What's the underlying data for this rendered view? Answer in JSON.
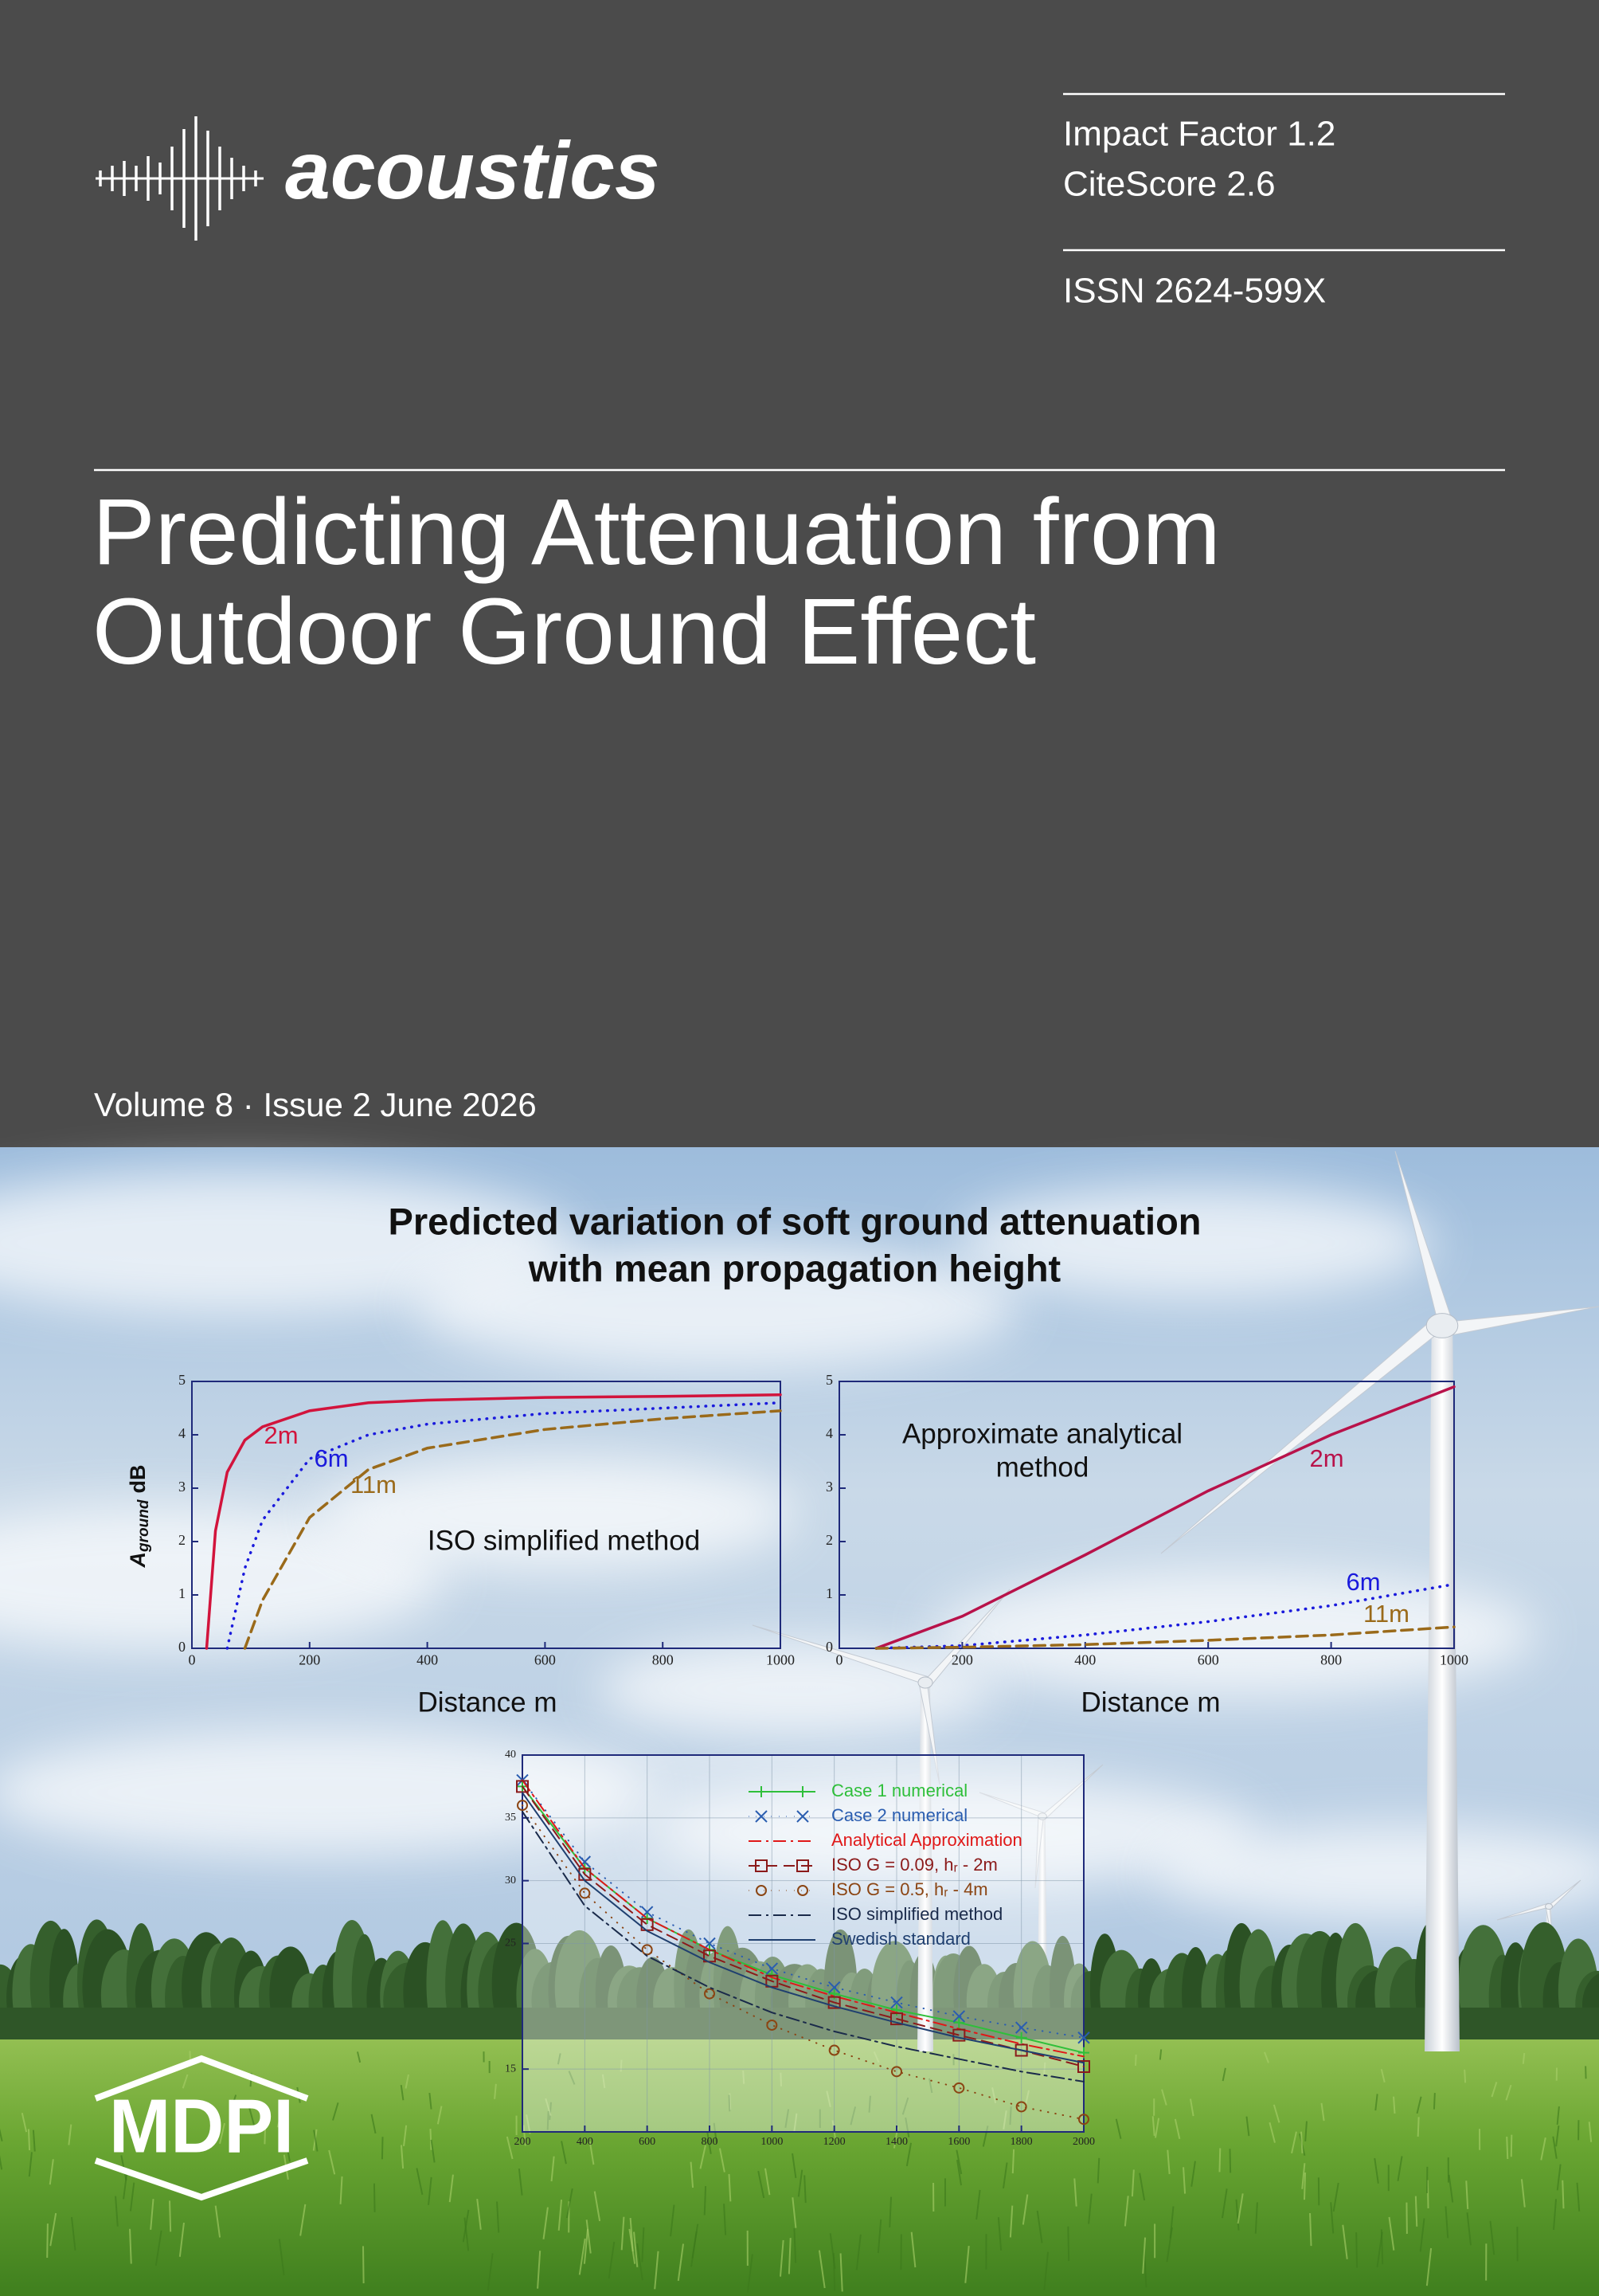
{
  "header": {
    "journal": "acoustics",
    "impact_factor": "Impact Factor 1.2",
    "citescore": "CiteScore 2.6",
    "issn": "ISSN 2624-599X"
  },
  "title": [
    "Predicting Attenuation from",
    "Outdoor Ground Effect"
  ],
  "issue": "Volume 8 · Issue 2 June 2026",
  "figure": {
    "title": [
      "Predicted variation of soft ground attenuation",
      "with mean propagation height"
    ],
    "charts": [
      {
        "type": "line",
        "y_label": [
          "A",
          "ground",
          "dB"
        ],
        "x_label": "Distance m",
        "annotation": [
          "ISO simplified method"
        ],
        "x": [
          25,
          40,
          60,
          90,
          120,
          200,
          300,
          400,
          600,
          800,
          1000
        ],
        "xlim": [
          0,
          1000
        ],
        "xticks": [
          0,
          200,
          400,
          600,
          800,
          1000
        ],
        "ylim": [
          0,
          5
        ],
        "yticks": [
          0,
          1,
          2,
          3,
          4,
          5
        ],
        "series": [
          {
            "name": "2m",
            "color": "#d2143c",
            "style": "solid",
            "values": [
              0,
              2.2,
              3.3,
              3.9,
              4.15,
              4.45,
              4.6,
              4.65,
              4.7,
              4.72,
              4.75
            ]
          },
          {
            "name": "6m",
            "color": "#1a1adc",
            "style": "dotted",
            "values": [
              null,
              null,
              0,
              1.5,
              2.4,
              3.55,
              4.0,
              4.2,
              4.4,
              4.5,
              4.6
            ]
          },
          {
            "name": "11m",
            "color": "#9a6a1a",
            "style": "dashed",
            "values": [
              null,
              null,
              null,
              0,
              0.9,
              2.45,
              3.35,
              3.75,
              4.1,
              4.3,
              4.45
            ]
          }
        ]
      },
      {
        "type": "line",
        "x_label": "Distance m",
        "annotation": [
          "Approximate analytical",
          "method"
        ],
        "x": [
          60,
          200,
          400,
          600,
          800,
          1000
        ],
        "xlim": [
          0,
          1000
        ],
        "xticks": [
          0,
          200,
          400,
          600,
          800,
          1000
        ],
        "ylim": [
          0,
          5
        ],
        "yticks": [
          0,
          1,
          2,
          3,
          4,
          5
        ],
        "series": [
          {
            "name": "2m",
            "color": "#b8124a",
            "style": "solid",
            "values": [
              0,
              0.6,
              1.75,
              2.95,
              4.0,
              4.9
            ]
          },
          {
            "name": "6m",
            "color": "#1a1adc",
            "style": "dotted",
            "values": [
              0,
              0.05,
              0.25,
              0.5,
              0.8,
              1.2
            ]
          },
          {
            "name": "11m",
            "color": "#9a6a1a",
            "style": "dashed",
            "values": [
              0,
              0.02,
              0.07,
              0.15,
              0.25,
              0.4
            ]
          }
        ]
      },
      {
        "type": "line",
        "grid": true,
        "background": "#ffffff",
        "x": [
          200,
          400,
          600,
          800,
          1000,
          1200,
          1400,
          1600,
          1800,
          2000
        ],
        "xlim": [
          200,
          2000
        ],
        "xticks": [
          200,
          400,
          600,
          800,
          1000,
          1200,
          1400,
          1600,
          1800,
          2000
        ],
        "ylim": [
          10,
          40
        ],
        "yticks": [
          15,
          25,
          30,
          35,
          40
        ],
        "series": [
          {
            "name": "Case 1 numerical",
            "color": "#2fbf3a",
            "style": "solid",
            "marker": "plus",
            "values": [
              37.5,
              31,
              27,
              24.5,
              22.5,
              21,
              19.7,
              18.7,
              17.5,
              16.3
            ]
          },
          {
            "name": "Case 2 numerical",
            "color": "#2a5db0",
            "style": "dotted",
            "marker": "cross",
            "values": [
              38,
              31.5,
              27.5,
              25,
              23,
              21.5,
              20.3,
              19.2,
              18.3,
              17.5
            ]
          },
          {
            "name": "Analytical Approximation",
            "color": "#e01818",
            "style": "dashdot",
            "values": [
              38,
              31,
              27,
              24.5,
              22.3,
              20.8,
              19.5,
              18.2,
              17,
              16
            ]
          },
          {
            "name": "ISO G = 0.09, hᵣ - 2m",
            "color": "#8b1a1a",
            "style": "dashed",
            "marker": "square",
            "values": [
              37.5,
              30.5,
              26.5,
              24,
              22,
              20.3,
              19,
              17.7,
              16.5,
              15.2
            ]
          },
          {
            "name": "ISO G = 0.5, hᵣ - 4m",
            "color": "#8b4513",
            "style": "dotted",
            "marker": "circle",
            "values": [
              36,
              29,
              24.5,
              21,
              18.5,
              16.5,
              14.8,
              13.5,
              12,
              11
            ]
          },
          {
            "name": "ISO simplified method",
            "color": "#1a2a4a",
            "style": "dashdot",
            "values": [
              35.5,
              28,
              24,
              21.5,
              19.5,
              18,
              16.8,
              15.8,
              14.8,
              14
            ]
          },
          {
            "name": "Swedish standard",
            "color": "#1f3f6f",
            "style": "solid",
            "values": [
              37,
              30,
              26,
              23.5,
              21.5,
              20,
              18.7,
              17.5,
              16.5,
              15.5
            ]
          }
        ]
      }
    ]
  },
  "publisher": "MDPI"
}
